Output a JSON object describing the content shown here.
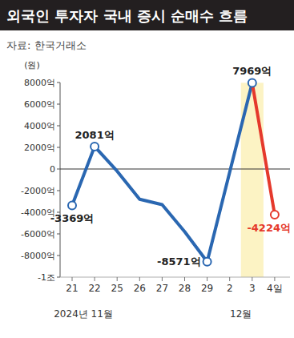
{
  "chart_data": {
    "type": "line",
    "title": "외국인 투자자 국내 증시 순매수 흐름",
    "subtitle": "자료: 한국거래소",
    "y_label": "(원)",
    "categories": [
      "21",
      "22",
      "25",
      "26",
      "27",
      "28",
      "29",
      "2",
      "3",
      "4일"
    ],
    "values": [
      -3369,
      2081,
      -200,
      -2800,
      -3300,
      -5800,
      -8571,
      -300,
      7969,
      -4224
    ],
    "value_labels": [
      "-3369억",
      "2081억",
      null,
      null,
      null,
      null,
      "-8571억",
      null,
      "7969억",
      "-4224억"
    ],
    "colors": [
      "#2a67b1",
      "#2a67b1",
      "#2a67b1",
      "#2a67b1",
      "#2a67b1",
      "#2a67b1",
      "#2a67b1",
      "#2a67b1",
      "#2a67b1",
      "#e5392c"
    ],
    "marker": "circle",
    "data_labels": true,
    "grid": false,
    "ylim": [
      -10000,
      8000
    ],
    "yticks": [
      {
        "value": 8000,
        "label": "8000억"
      },
      {
        "value": 6000,
        "label": "6000억"
      },
      {
        "value": 4000,
        "label": "4000억"
      },
      {
        "value": 2000,
        "label": "2000억"
      },
      0,
      {
        "value": -2000,
        "label": "-2000억"
      },
      {
        "value": -4000,
        "label": "-4000억"
      },
      {
        "value": -6000,
        "label": "-6000억"
      },
      {
        "value": -8000,
        "label": "-8000억"
      },
      {
        "value": -10000,
        "label": "-1조"
      }
    ],
    "annotations": [
      {
        "text": "2024년 11월",
        "categories": [
          "21",
          "22"
        ]
      },
      {
        "text": "12월",
        "categories": [
          "2",
          "3"
        ]
      }
    ]
  }
}
